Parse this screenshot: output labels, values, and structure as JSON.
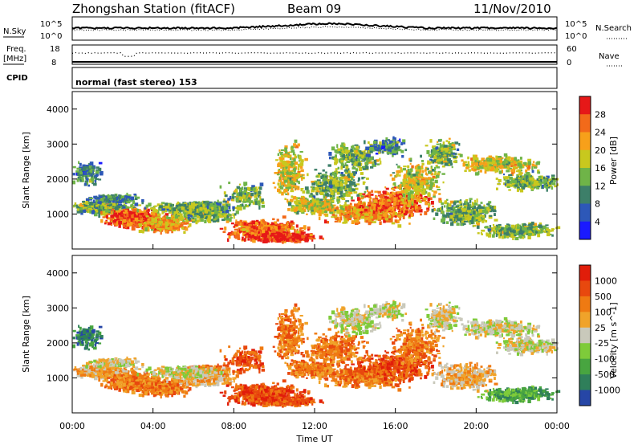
{
  "header": {
    "station": "Zhongshan Station (fitACF)",
    "beam": "Beam 09",
    "date": "11/Nov/2010"
  },
  "nsky_panel": {
    "left_label": "N.Sky",
    "right_label": "N.Search",
    "left_ticks": [
      "10^5",
      "10^0"
    ],
    "right_ticks": [
      "10^5",
      "10^0"
    ]
  },
  "freq_panel": {
    "left_label": "Freq.",
    "left_unit": "[MHz]",
    "right_label": "Nave",
    "left_ticks": [
      "18",
      "8"
    ],
    "right_ticks": [
      "60",
      "0"
    ]
  },
  "cpid_panel": {
    "label": "CPID",
    "text": "normal (fast stereo) 153"
  },
  "chart_data": [
    {
      "type": "heatmap",
      "name": "power",
      "ylabel": "Slant Range [km]",
      "yticks": [
        "4000",
        "3000",
        "2000",
        "1000"
      ],
      "ylim": [
        0,
        4500
      ],
      "colorbar_label": "Power [dB]",
      "colorbar_ticks": [
        "28",
        "24",
        "20",
        "16",
        "12",
        "8",
        "4"
      ],
      "colors": [
        "#1a1aff",
        "#2d58b8",
        "#3d7f69",
        "#6fb448",
        "#c8c81e",
        "#f7a01a",
        "#f26a1a",
        "#e61818"
      ]
    },
    {
      "type": "heatmap",
      "name": "velocity",
      "ylabel": "Slant Range [km]",
      "yticks": [
        "4000",
        "3000",
        "2000",
        "1000"
      ],
      "ylim": [
        0,
        4500
      ],
      "colorbar_label": "Velocity [m s^-1]",
      "colorbar_ticks": [
        "1000",
        "500",
        "100",
        "25",
        "-25",
        "-100",
        "-500",
        "-1000"
      ],
      "colors": [
        "#2646a6",
        "#2f7f5a",
        "#48a540",
        "#7ecb3a",
        "#c9c9bb",
        "#f0a32a",
        "#ef7a12",
        "#e8480e",
        "#e11d0a"
      ]
    }
  ],
  "x_axis": {
    "ticks": [
      "00:00",
      "04:00",
      "08:00",
      "12:00",
      "16:00",
      "20:00",
      "00:00"
    ],
    "label": "Time UT"
  }
}
